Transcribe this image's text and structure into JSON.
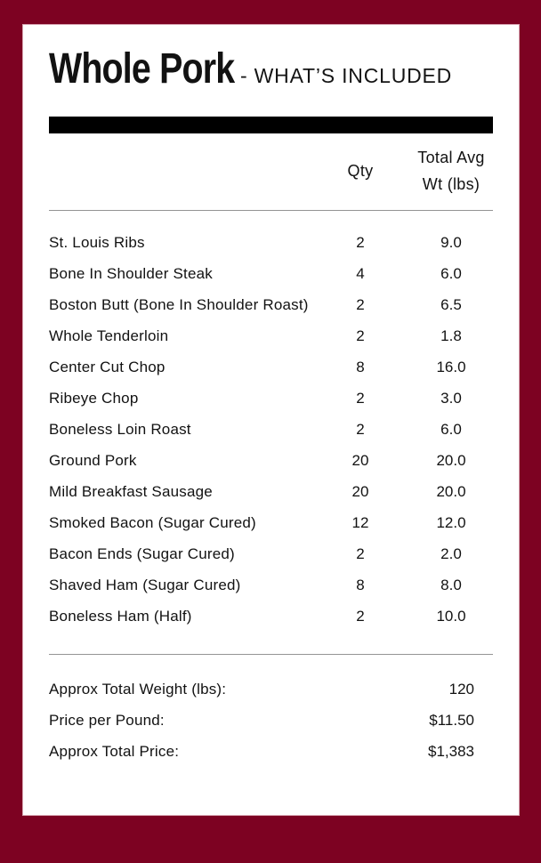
{
  "header": {
    "title": "Whole Pork",
    "subtitle": "- WHAT’S INCLUDED"
  },
  "table": {
    "headers": {
      "item": "",
      "qty": "Qty",
      "weight_line1": "Total Avg",
      "weight_line2": "Wt (lbs)"
    },
    "rows": [
      {
        "item": "St. Louis Ribs",
        "qty": "2",
        "weight": "9.0"
      },
      {
        "item": "Bone In Shoulder Steak",
        "qty": "4",
        "weight": "6.0"
      },
      {
        "item": "Boston Butt (Bone In Shoulder Roast)",
        "qty": "2",
        "weight": "6.5"
      },
      {
        "item": "Whole Tenderloin",
        "qty": "2",
        "weight": "1.8"
      },
      {
        "item": "Center Cut Chop",
        "qty": "8",
        "weight": "16.0"
      },
      {
        "item": "Ribeye Chop",
        "qty": "2",
        "weight": "3.0"
      },
      {
        "item": "Boneless Loin Roast",
        "qty": "2",
        "weight": "6.0"
      },
      {
        "item": "Ground Pork",
        "qty": "20",
        "weight": "20.0"
      },
      {
        "item": "Mild Breakfast Sausage",
        "qty": "20",
        "weight": "20.0"
      },
      {
        "item": "Smoked Bacon (Sugar Cured)",
        "qty": "12",
        "weight": "12.0"
      },
      {
        "item": "Bacon Ends (Sugar Cured)",
        "qty": "2",
        "weight": "2.0"
      },
      {
        "item": "Shaved Ham (Sugar Cured)",
        "qty": "8",
        "weight": "8.0"
      },
      {
        "item": "Boneless Ham (Half)",
        "qty": "2",
        "weight": "10.0"
      }
    ],
    "summary": [
      {
        "label": "Approx Total Weight (lbs):",
        "value": "120"
      },
      {
        "label": "Price per Pound:",
        "value": "$11.50"
      },
      {
        "label": "Approx Total Price:",
        "value": "$1,383"
      }
    ]
  },
  "colors": {
    "page_border": "#7d0222",
    "title_bar": "#000000",
    "divider": "#949494",
    "text": "#121212",
    "card_background": "#ffffff"
  }
}
